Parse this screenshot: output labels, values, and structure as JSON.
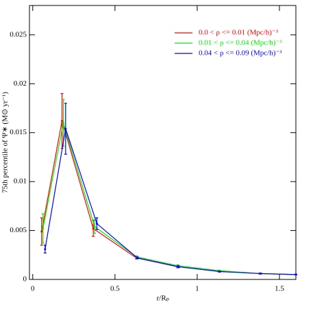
{
  "chart_data": {
    "type": "line",
    "xlabel": "r/Rₚ",
    "ylabel": "75th percentile of Ψ∗ (M⊙ yr⁻¹)",
    "xlim": [
      -0.02,
      1.6
    ],
    "xticks": [
      0,
      0.5,
      1,
      1.5
    ],
    "ylim": [
      0,
      0.028
    ],
    "yticks": [
      0,
      0.005,
      0.01,
      0.015,
      0.02,
      0.025
    ],
    "legend": "upper right",
    "series": [
      {
        "name": "0.0 < ρ <= 0.01 (Mpc/h)⁻³",
        "color": "#ff0000",
        "x": [
          0.054,
          0.178,
          0.368,
          0.63,
          0.88,
          1.13,
          1.38,
          1.6
        ],
        "values": [
          0.0049,
          0.0162,
          0.0052,
          0.0022,
          0.0013,
          0.00085,
          0.0006,
          0.0005
        ],
        "errors": [
          0.0014,
          0.0028,
          0.0008,
          0.0001,
          0.0001,
          5e-05,
          4e-05,
          3e-05
        ]
      },
      {
        "name": "0.01 < ρ <= 0.04 (Mpc/h)⁻³",
        "color": "#00ee00",
        "x": [
          0.062,
          0.186,
          0.376,
          0.632,
          0.882,
          1.132,
          1.382,
          1.6
        ],
        "values": [
          0.0052,
          0.016,
          0.0054,
          0.0023,
          0.0014,
          0.0009,
          0.0006,
          0.0005
        ],
        "errors": [
          0.0015,
          0.0024,
          0.0007,
          0.0001,
          0.0001,
          5e-05,
          4e-05,
          3e-05
        ]
      },
      {
        "name": "0.04 < ρ <= 0.09 (Mpc/h)⁻³",
        "color": "#0000ff",
        "x": [
          0.075,
          0.2,
          0.39,
          0.636,
          0.886,
          1.136,
          1.386,
          1.6
        ],
        "values": [
          0.0031,
          0.0154,
          0.0057,
          0.0022,
          0.0013,
          0.0008,
          0.0006,
          0.0005
        ],
        "errors": [
          0.0004,
          0.0026,
          0.0006,
          0.0001,
          0.0001,
          5e-05,
          4e-05,
          3e-05
        ]
      }
    ]
  }
}
